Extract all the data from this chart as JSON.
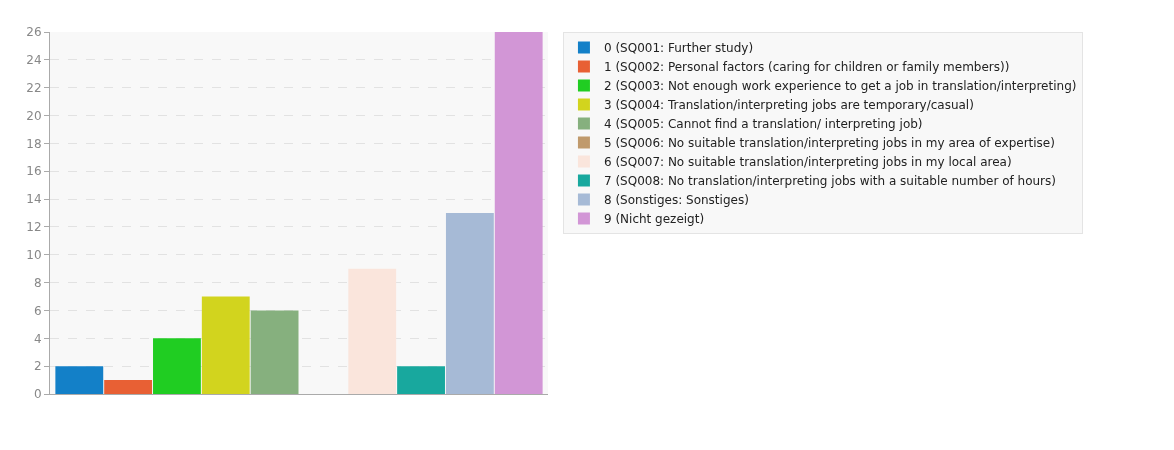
{
  "chart_data": {
    "type": "bar",
    "categories": [
      null,
      null,
      null,
      null,
      null,
      null,
      null,
      null,
      null,
      null
    ],
    "series": [
      {
        "name": "0 (SQ001: Further study)",
        "color": "#1380c8",
        "values": [
          2,
          null,
          null,
          null,
          null,
          null,
          null,
          null,
          null,
          null
        ]
      },
      {
        "name": "1 (SQ002: Personal factors (caring for children or family members))",
        "color": "#e86034",
        "values": [
          null,
          1,
          null,
          null,
          null,
          null,
          null,
          null,
          null,
          null
        ]
      },
      {
        "name": "2 (SQ003: Not enough work experience to get a job in translation/interpreting)",
        "color": "#20cd22",
        "values": [
          null,
          null,
          4,
          null,
          null,
          null,
          null,
          null,
          null,
          null
        ]
      },
      {
        "name": "3 (SQ004: Translation/interpreting jobs are temporary/casual)",
        "color": "#d2d41e",
        "values": [
          null,
          null,
          null,
          7,
          null,
          null,
          null,
          null,
          null,
          null
        ]
      },
      {
        "name": "4 (SQ005: Cannot find a translation/ interpreting job)",
        "color": "#86b07e",
        "values": [
          null,
          null,
          null,
          null,
          6,
          null,
          null,
          null,
          null,
          null
        ]
      },
      {
        "name": "5 (SQ006: No suitable translation/interpreting jobs in my area of expertise)",
        "color": "#c09a6c",
        "values": [
          null,
          null,
          null,
          null,
          null,
          0,
          null,
          null,
          null,
          null
        ]
      },
      {
        "name": "6 (SQ007: No suitable translation/interpreting jobs in my local area)",
        "color": "#fae5dc",
        "values": [
          null,
          null,
          null,
          null,
          null,
          null,
          9,
          null,
          null,
          null
        ]
      },
      {
        "name": "7 (SQ008: No translation/interpreting jobs with a suitable number of hours)",
        "color": "#18a89e",
        "values": [
          null,
          null,
          null,
          null,
          null,
          null,
          null,
          2,
          null,
          null
        ]
      },
      {
        "name": "8 (Sonstiges: Sonstiges)",
        "color": "#a6bad6",
        "values": [
          null,
          null,
          null,
          null,
          null,
          null,
          null,
          null,
          13,
          null
        ]
      },
      {
        "name": "9 (Nicht gezeigt)",
        "color": "#d296d6",
        "values": [
          null,
          null,
          null,
          null,
          null,
          null,
          null,
          null,
          null,
          26
        ]
      }
    ],
    "ylim": [
      0,
      26
    ],
    "yticks": [
      0,
      2,
      4,
      6,
      8,
      10,
      12,
      14,
      16,
      18,
      20,
      22,
      24,
      26
    ],
    "grid": "y",
    "legend": "top right"
  }
}
